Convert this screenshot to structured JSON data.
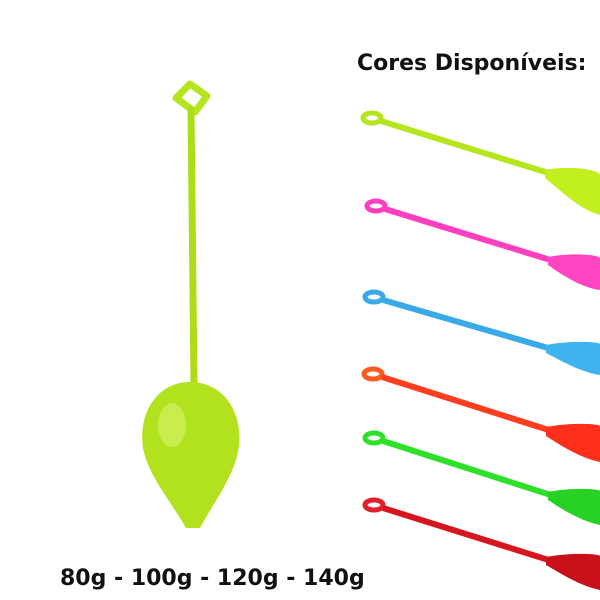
{
  "heading": "Cores Disponíveis:",
  "weights": "80g - 100g - 120g - 140g"
}
